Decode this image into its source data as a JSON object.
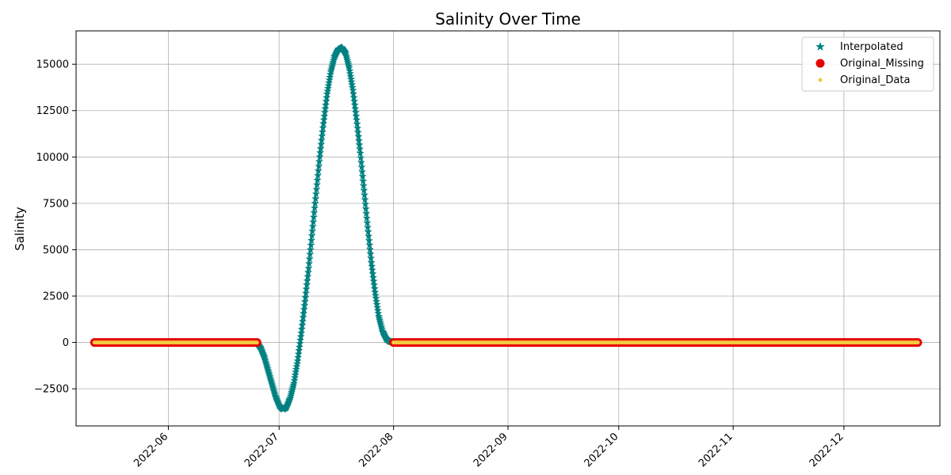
{
  "chart_data": {
    "type": "scatter",
    "title": "Salinity Over Time",
    "xlabel": "",
    "ylabel": "Salinity",
    "x_type": "date",
    "xlim": [
      "2022-05-07",
      "2022-12-27"
    ],
    "ylim": [
      -4500,
      16800
    ],
    "grid": true,
    "legend_position": "top-right",
    "x_ticks": [
      "2022-06",
      "2022-07",
      "2022-08",
      "2022-09",
      "2022-10",
      "2022-11",
      "2022-12"
    ],
    "y_ticks": [
      -2500,
      0,
      2500,
      5000,
      7500,
      10000,
      12500,
      15000
    ],
    "series": [
      {
        "name": "Interpolated",
        "marker": "star",
        "color": "#008080",
        "x": [
          "2022-06-25",
          "2022-06-26",
          "2022-06-27",
          "2022-06-28",
          "2022-06-29",
          "2022-06-30",
          "2022-07-01",
          "2022-07-02",
          "2022-07-03",
          "2022-07-04",
          "2022-07-05",
          "2022-07-06",
          "2022-07-07",
          "2022-07-08",
          "2022-07-09",
          "2022-07-10",
          "2022-07-11",
          "2022-07-12",
          "2022-07-13",
          "2022-07-14",
          "2022-07-15",
          "2022-07-16",
          "2022-07-17",
          "2022-07-18",
          "2022-07-19",
          "2022-07-20",
          "2022-07-21",
          "2022-07-22",
          "2022-07-23",
          "2022-07-24",
          "2022-07-25",
          "2022-07-26",
          "2022-07-27",
          "2022-07-28",
          "2022-07-29",
          "2022-07-30",
          "2022-07-31",
          "2022-08-01"
        ],
        "y": [
          0,
          -300,
          -800,
          -1500,
          -2200,
          -2900,
          -3400,
          -3600,
          -3500,
          -3000,
          -2200,
          -1000,
          500,
          2200,
          4000,
          6000,
          8000,
          10000,
          11800,
          13400,
          14600,
          15400,
          15800,
          15900,
          15600,
          14800,
          13600,
          12000,
          10200,
          8200,
          6200,
          4300,
          2700,
          1400,
          600,
          200,
          50,
          0
        ]
      },
      {
        "name": "Original_Missing",
        "marker": "circle",
        "color": "#e60000",
        "segments": [
          [
            "2022-05-12",
            "2022-06-25"
          ],
          [
            "2022-08-01",
            "2022-12-21"
          ]
        ],
        "value": 0
      },
      {
        "name": "Original_Data",
        "marker": "point",
        "color": "#f5c842",
        "segments": [
          [
            "2022-05-12",
            "2022-06-25"
          ],
          [
            "2022-08-01",
            "2022-12-21"
          ]
        ],
        "value": 0
      }
    ]
  }
}
